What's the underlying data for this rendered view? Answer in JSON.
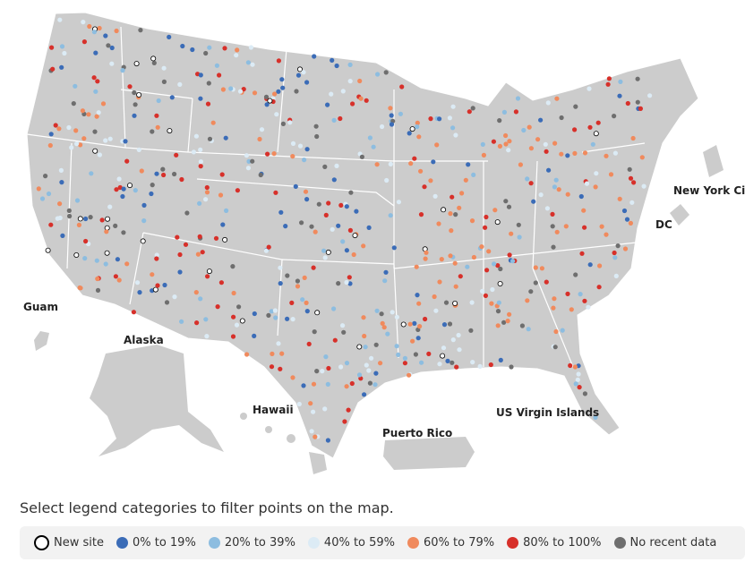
{
  "map": {
    "labels": [
      "Guam",
      "Alaska",
      "Hawaii",
      "Puerto Rico",
      "US Virgin Islands",
      "DC",
      "New York Ci"
    ]
  },
  "instruction": "Select legend categories to filter points on the map.",
  "legend": [
    {
      "label": "New site",
      "color": "#ffffff",
      "stroke": "#000000"
    },
    {
      "label": "0% to 19%",
      "color": "#3b6cb7"
    },
    {
      "label": "20% to 39%",
      "color": "#8dbde0"
    },
    {
      "label": "40% to 59%",
      "color": "#dcebf5"
    },
    {
      "label": "60% to 79%",
      "color": "#f08a5d"
    },
    {
      "label": "80% to 100%",
      "color": "#d7302a"
    },
    {
      "label": "No recent data",
      "color": "#6e6e6e"
    }
  ]
}
